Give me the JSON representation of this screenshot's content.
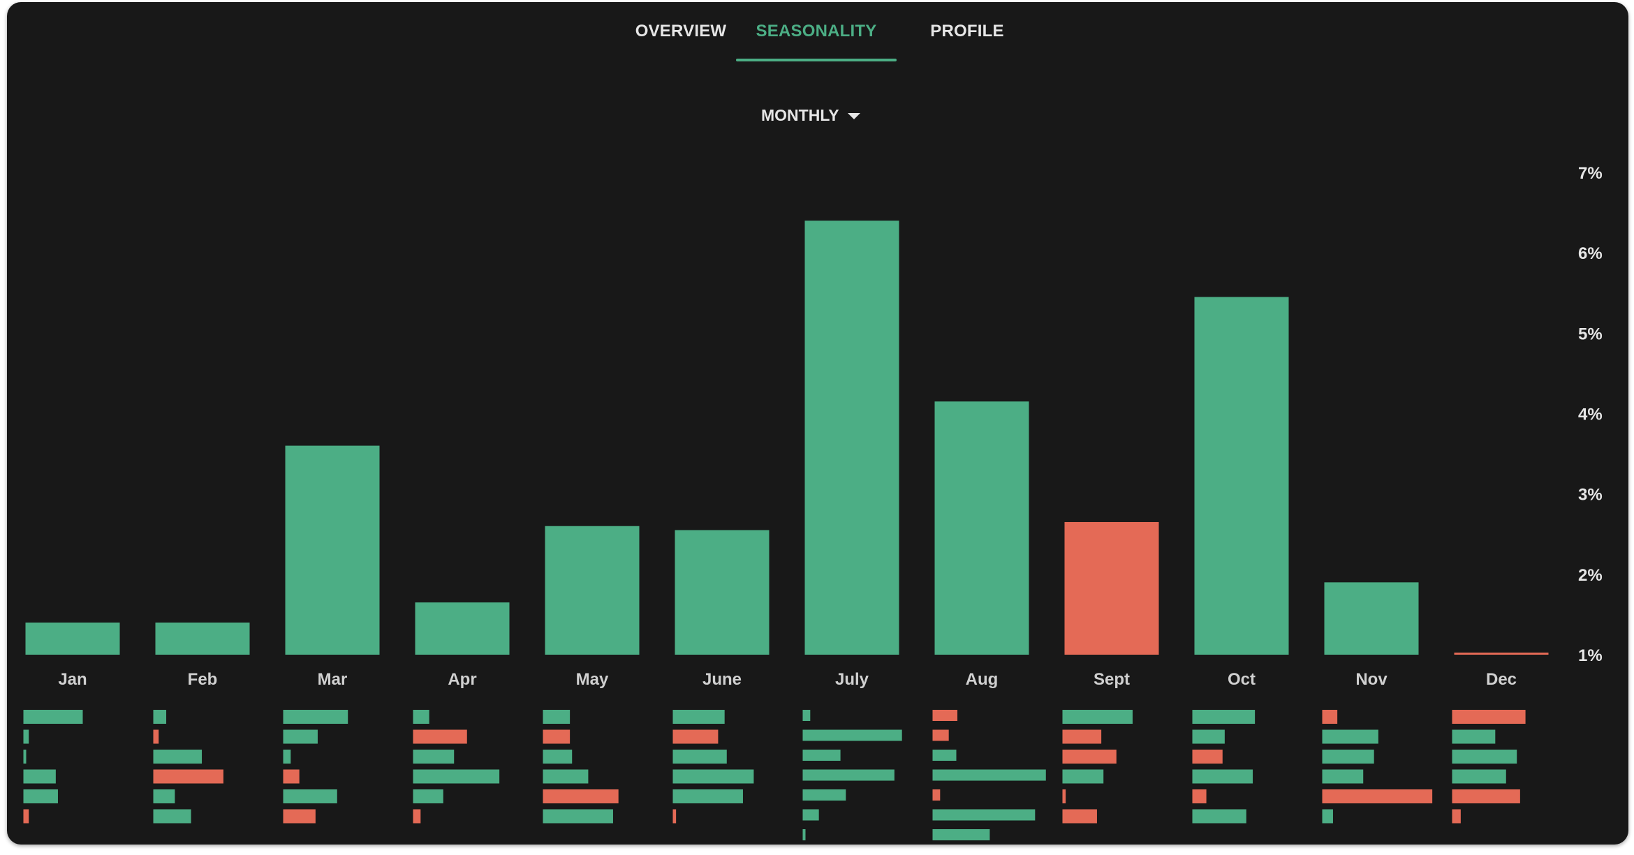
{
  "tabs": [
    {
      "label": "OVERVIEW",
      "active": false
    },
    {
      "label": "SEASONALITY",
      "active": true
    },
    {
      "label": "PROFILE",
      "active": false
    }
  ],
  "period_select": {
    "value": "MONTHLY",
    "icon": "caret-down-icon"
  },
  "colors": {
    "positive": "#4cae85",
    "negative": "#e46a56",
    "background": "#181818",
    "text": "#e6e6e6"
  },
  "chart_data": {
    "type": "bar",
    "title": "",
    "xlabel": "",
    "ylabel": "",
    "categories": [
      "Jan",
      "Feb",
      "Mar",
      "Apr",
      "May",
      "June",
      "July",
      "Aug",
      "Sept",
      "Oct",
      "Nov",
      "Dec"
    ],
    "values": [
      1.4,
      1.4,
      3.6,
      1.65,
      2.6,
      2.55,
      6.4,
      4.15,
      2.65,
      5.45,
      1.9,
      1.0
    ],
    "signs": [
      "positive",
      "positive",
      "positive",
      "positive",
      "positive",
      "positive",
      "positive",
      "positive",
      "negative",
      "positive",
      "positive",
      "negative"
    ],
    "ylim": [
      1,
      7
    ],
    "yticks": [
      "1%",
      "2%",
      "3%",
      "4%",
      "5%",
      "6%",
      "7%"
    ],
    "y_axis_position": "right",
    "grid": false,
    "yearly_breakdown": [
      [
        0.55,
        0.05,
        0,
        0.3,
        0.32,
        -0.05
      ],
      [
        0.12,
        -0.05,
        0.45,
        -0.65,
        0.2,
        0.35
      ],
      [
        0.6,
        0.32,
        0.07,
        -0.15,
        0.5,
        -0.3
      ],
      [
        0.15,
        -0.5,
        0.38,
        0.8,
        0.28,
        -0.07
      ],
      [
        0.25,
        -0.25,
        0.27,
        0.42,
        -0.7,
        0.65
      ],
      [
        0.48,
        -0.42,
        0.5,
        0.75,
        0.65,
        -0.03
      ],
      [
        0.07,
        0.92,
        0.35,
        0.85,
        0.4,
        0.15,
        0.0
      ],
      [
        -0.23,
        -0.15,
        0.22,
        1.05,
        -0.07,
        0.95,
        0.53
      ],
      [
        0.65,
        -0.36,
        -0.5,
        0.38,
        -0.03,
        -0.32
      ],
      [
        0.58,
        0.3,
        -0.28,
        0.56,
        -0.13,
        0.5
      ],
      [
        -0.14,
        0.52,
        0.48,
        0.38,
        -1.02,
        0.1
      ],
      [
        -0.68,
        0.4,
        0.6,
        0.5,
        -0.63,
        -0.08
      ]
    ],
    "breakdown_scale_max": 1.1
  }
}
